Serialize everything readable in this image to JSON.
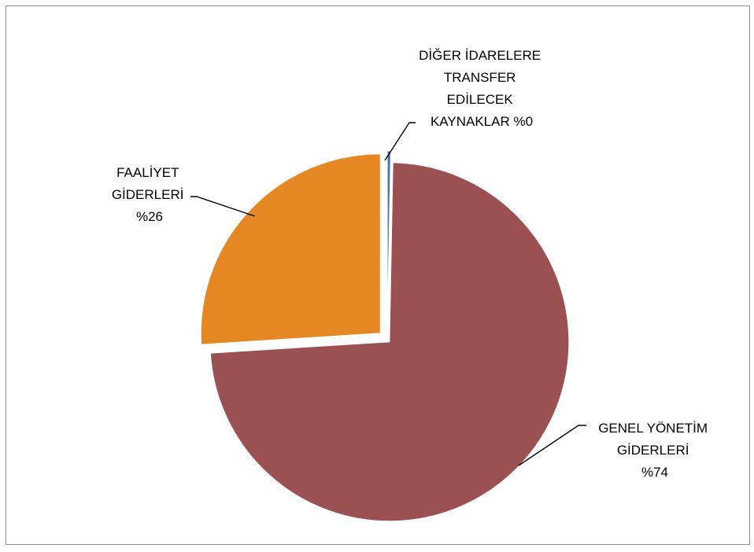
{
  "chart_data": {
    "type": "pie",
    "title": "",
    "exploded": true,
    "slices": [
      {
        "name": "DİĞER İDARELERE TRANSFER EDİLECEK KAYNAKLAR",
        "label_lines": [
          "DİĞER İDARELERE",
          "TRANSFER",
          "EDİLECEK",
          "KAYNAKLAR  %0"
        ],
        "percent_label": "%0",
        "value": 0.3,
        "color": "#4f6fab"
      },
      {
        "name": "GENEL YÖNETİM GİDERLERİ",
        "label_lines": [
          "GENEL YÖNETİM",
          "GİDERLERİ",
          "%74"
        ],
        "percent_label": "%74",
        "value": 73.7,
        "color": "#9b5152"
      },
      {
        "name": "FAALİYET GİDERLERİ",
        "label_lines": [
          "FAALİYET",
          "GİDERLERİ",
          "%26"
        ],
        "percent_label": "%26",
        "value": 26.0,
        "color": "#e58723"
      }
    ],
    "legend": "none",
    "data_labels": "outside-with-leader-lines"
  }
}
